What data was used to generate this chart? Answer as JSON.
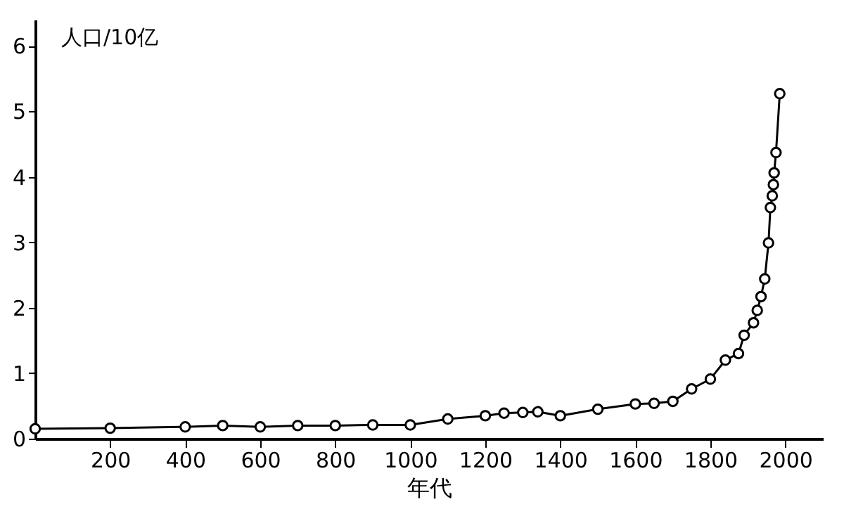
{
  "chart_data": {
    "type": "line",
    "xlabel": "年代",
    "ylabel": "人口/10亿",
    "x": [
      0,
      200,
      400,
      500,
      600,
      700,
      800,
      900,
      1000,
      1100,
      1200,
      1250,
      1300,
      1340,
      1400,
      1500,
      1600,
      1650,
      1700,
      1750,
      1800,
      1840,
      1875,
      1890,
      1915,
      1925,
      1935,
      1945,
      1955,
      1960,
      1965,
      1968,
      1970,
      1975,
      1985
    ],
    "series": [
      {
        "color": "#000000",
        "values": [
          0.15,
          0.16,
          0.18,
          0.2,
          0.18,
          0.2,
          0.2,
          0.21,
          0.21,
          0.3,
          0.35,
          0.39,
          0.4,
          0.41,
          0.35,
          0.45,
          0.53,
          0.54,
          0.57,
          0.76,
          0.91,
          1.2,
          1.3,
          1.58,
          1.77,
          1.96,
          2.17,
          2.44,
          2.99,
          3.53,
          3.71,
          3.88,
          4.06,
          4.37,
          5.27
        ]
      }
    ],
    "xlim": [
      0,
      2100
    ],
    "xticks": [
      200,
      400,
      600,
      800,
      1000,
      1200,
      1400,
      1600,
      1800,
      2000
    ],
    "ylim": [
      0,
      6.4
    ],
    "yticks": [
      0,
      1,
      2,
      3,
      4,
      5,
      6
    ],
    "marker": "circle",
    "line_style": "solid"
  }
}
